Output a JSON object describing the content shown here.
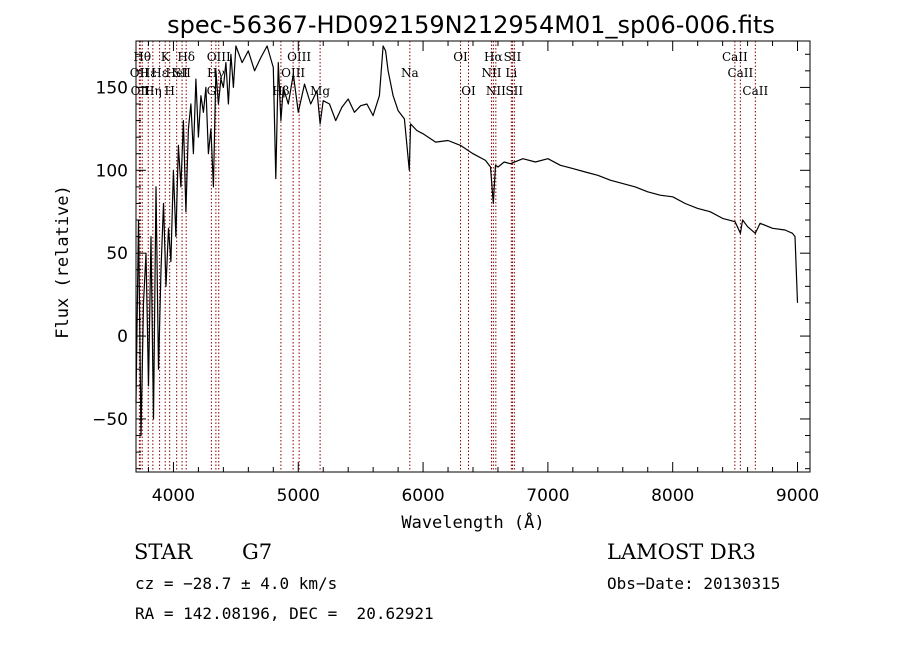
{
  "chart_data": {
    "type": "line",
    "title": "spec-56367-HD092159N212954M01_sp06-006.fits",
    "xlabel": "Wavelength (Å)",
    "ylabel": "Flux (relative)",
    "xlim": [
      3700,
      9100
    ],
    "ylim": [
      -82,
      178
    ],
    "xticks": [
      4000,
      5000,
      6000,
      7000,
      8000,
      9000
    ],
    "xtick_labels": [
      "4000",
      "5000",
      "6000",
      "7000",
      "8000",
      "9000"
    ],
    "yticks": [
      -50,
      0,
      50,
      100,
      150
    ],
    "ytick_labels": [
      "−50",
      "0",
      "50",
      "100",
      "150"
    ],
    "series": [
      {
        "name": "spectrum",
        "x": [
          3700,
          3720,
          3740,
          3760,
          3780,
          3800,
          3820,
          3840,
          3860,
          3880,
          3900,
          3920,
          3940,
          3960,
          3980,
          4000,
          4020,
          4040,
          4060,
          4080,
          4100,
          4120,
          4140,
          4160,
          4180,
          4200,
          4220,
          4240,
          4260,
          4280,
          4300,
          4320,
          4340,
          4360,
          4380,
          4400,
          4420,
          4440,
          4460,
          4480,
          4500,
          4550,
          4600,
          4650,
          4700,
          4750,
          4800,
          4820,
          4840,
          4861,
          4880,
          4920,
          4960,
          5000,
          5050,
          5100,
          5150,
          5175,
          5200,
          5250,
          5300,
          5350,
          5400,
          5450,
          5500,
          5550,
          5600,
          5650,
          5680,
          5700,
          5720,
          5760,
          5800,
          5850,
          5890,
          5900,
          5950,
          6000,
          6100,
          6200,
          6300,
          6400,
          6500,
          6540,
          6563,
          6580,
          6600,
          6650,
          6700,
          6800,
          6900,
          7000,
          7100,
          7200,
          7300,
          7400,
          7500,
          7600,
          7700,
          7800,
          7900,
          8000,
          8100,
          8200,
          8300,
          8400,
          8500,
          8542,
          8560,
          8600,
          8662,
          8700,
          8800,
          8900,
          8960,
          8980,
          9000
        ],
        "values": [
          -40,
          70,
          -60,
          20,
          50,
          -30,
          60,
          -50,
          90,
          -20,
          40,
          80,
          30,
          65,
          45,
          100,
          60,
          115,
          90,
          130,
          75,
          125,
          140,
          110,
          155,
          120,
          145,
          135,
          150,
          110,
          125,
          90,
          160,
          140,
          155,
          150,
          165,
          140,
          170,
          150,
          175,
          165,
          172,
          160,
          168,
          175,
          162,
          95,
          165,
          130,
          150,
          140,
          158,
          135,
          152,
          140,
          148,
          128,
          142,
          140,
          130,
          138,
          143,
          135,
          139,
          140,
          133,
          145,
          175,
          172,
          160,
          145,
          136,
          131,
          100,
          128,
          124,
          122,
          117,
          118,
          115,
          110,
          106,
          102,
          80,
          103,
          102,
          105,
          104,
          107,
          105,
          107,
          103,
          101,
          99,
          97,
          94,
          92,
          90,
          87,
          85,
          84,
          80,
          77,
          75,
          71,
          69,
          62,
          70,
          66,
          62,
          68,
          65,
          64,
          62,
          60,
          20
        ]
      }
    ],
    "line_marks": [
      {
        "w": 3750,
        "row": 1,
        "label": "Hθ"
      },
      {
        "w": 3727,
        "row": 2,
        "label": "OII"
      },
      {
        "w": 3734,
        "row": 3,
        "label": "OII"
      },
      {
        "w": 3798,
        "row": 2,
        "label": "Hε"
      },
      {
        "w": 3835,
        "row": 3,
        "label": "Hη"
      },
      {
        "w": 3889,
        "row": 2,
        "label": "Hε"
      },
      {
        "w": 3934,
        "row": 1,
        "label": "K"
      },
      {
        "w": 3970,
        "row": 3,
        "label": "H"
      },
      {
        "w": 4026,
        "row": 2,
        "label": "HeI"
      },
      {
        "w": 4069,
        "row": 2,
        "label": "SII"
      },
      {
        "w": 4102,
        "row": 1,
        "label": "Hδ"
      },
      {
        "w": 4304,
        "row": 3,
        "label": "G"
      },
      {
        "w": 4340,
        "row": 2,
        "label": "Hγ"
      },
      {
        "w": 4363,
        "row": 1,
        "label": "OIII"
      },
      {
        "w": 4861,
        "row": 3,
        "label": "Hβ"
      },
      {
        "w": 4959,
        "row": 2,
        "label": "OIII"
      },
      {
        "w": 5007,
        "row": 1,
        "label": "OIII"
      },
      {
        "w": 5175,
        "row": 3,
        "label": "Mg"
      },
      {
        "w": 5894,
        "row": 2,
        "label": "Na"
      },
      {
        "w": 6300,
        "row": 1,
        "label": "OI"
      },
      {
        "w": 6364,
        "row": 3,
        "label": "OI"
      },
      {
        "w": 6548,
        "row": 2,
        "label": "NII"
      },
      {
        "w": 6563,
        "row": 1,
        "label": "Hα"
      },
      {
        "w": 6583,
        "row": 3,
        "label": "NII"
      },
      {
        "w": 6707,
        "row": 2,
        "label": "Li"
      },
      {
        "w": 6716,
        "row": 1,
        "label": "SII"
      },
      {
        "w": 6731,
        "row": 3,
        "label": "SII"
      },
      {
        "w": 8498,
        "row": 1,
        "label": "CaII"
      },
      {
        "w": 8542,
        "row": 2,
        "label": "CaII"
      },
      {
        "w": 8662,
        "row": 3,
        "label": "CaII"
      }
    ],
    "line_color": "#8b0000"
  },
  "info": {
    "object_class": "STAR",
    "subclass": "G7",
    "survey": "LAMOST DR3",
    "redshift": "cz = −28.7 ± 4.0 km/s",
    "obs_date": "Obs−Date: 20130315",
    "coords": "RA = 142.08196, DEC =  20.62921"
  }
}
